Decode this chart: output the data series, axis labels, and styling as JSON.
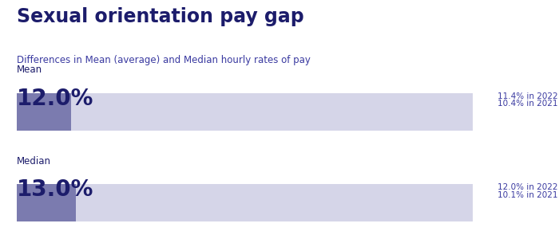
{
  "title": "Sexual orientation pay gap",
  "subtitle": "Differences in Mean (average) and Median hourly rates of pay",
  "title_color": "#1c1c6b",
  "subtitle_color": "#3939a0",
  "background_color": "#ffffff",
  "bars": [
    {
      "label": "Mean",
      "value_label": "12.0%",
      "value": 12.0,
      "max_value": 100,
      "bar_color": "#7b7baf",
      "bg_color": "#d5d5e8",
      "annotation_line1": "11.4% in 2022",
      "annotation_line2": "10.4% in 2021"
    },
    {
      "label": "Median",
      "value_label": "13.0%",
      "value": 13.0,
      "max_value": 100,
      "bar_color": "#7b7baf",
      "bg_color": "#d5d5e8",
      "annotation_line1": "12.0% in 2022",
      "annotation_line2": "10.1% in 2021"
    }
  ],
  "annotation_color": "#3939a0",
  "label_fontsize": 8.5,
  "value_fontsize": 20,
  "annotation_fontsize": 7.5,
  "title_fontsize": 17,
  "subtitle_fontsize": 8.5
}
